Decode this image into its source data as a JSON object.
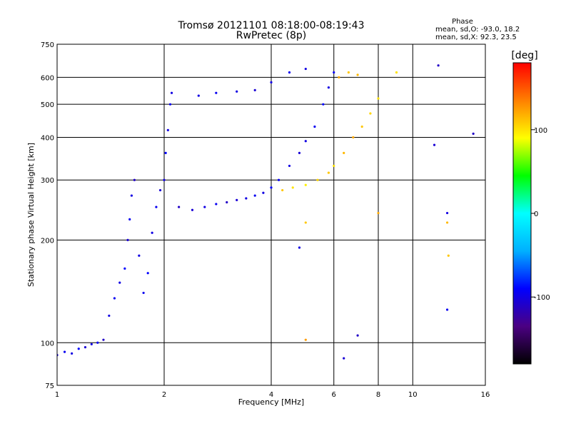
{
  "chart_data": {
    "type": "scatter",
    "title": "Tromsø 20121101 08:18:00-08:19:43",
    "subtitle": "RwPretec (8p)",
    "xlabel": "Frequency [MHz]",
    "ylabel": "Stationary phase Virtual Height [km]",
    "x_scale": "log",
    "y_scale": "log",
    "xlim": [
      1,
      16
    ],
    "ylim": [
      75,
      750
    ],
    "x_ticks": [
      1,
      2,
      4,
      6,
      8,
      10,
      16
    ],
    "y_ticks": [
      75,
      100,
      200,
      300,
      400,
      500,
      600,
      750
    ],
    "grid": true,
    "phase_stats": {
      "title": "Phase",
      "line_o": "mean, sd,O:  -93.0, 18.2",
      "line_x": "mean, sd,X:  92.3, 23.5"
    },
    "colorbar": {
      "label": "[deg]",
      "range": [
        -180,
        180
      ],
      "ticks": [
        100,
        0,
        -100
      ],
      "colors": [
        "#000000",
        "#4b0082",
        "#0000ff",
        "#00b0ff",
        "#00ffff",
        "#00ff00",
        "#ffff00",
        "#ff8000",
        "#ff0000"
      ]
    },
    "series": [
      {
        "values_description": "",
        "colormap_by": "phase",
        "points": [
          [
            1.0,
            92,
            -100
          ],
          [
            1.05,
            94,
            -95
          ],
          [
            1.1,
            93,
            -100
          ],
          [
            1.15,
            96,
            -90
          ],
          [
            1.2,
            97,
            -105
          ],
          [
            1.25,
            99,
            -100
          ],
          [
            1.3,
            100,
            -95
          ],
          [
            1.35,
            102,
            -110
          ],
          [
            1.4,
            120,
            -100
          ],
          [
            1.45,
            135,
            -95
          ],
          [
            1.5,
            150,
            -100
          ],
          [
            1.55,
            165,
            -90
          ],
          [
            1.58,
            200,
            -105
          ],
          [
            1.6,
            230,
            -95
          ],
          [
            1.62,
            270,
            -100
          ],
          [
            1.65,
            300,
            -110
          ],
          [
            1.7,
            180,
            -100
          ],
          [
            1.75,
            140,
            -95
          ],
          [
            1.8,
            160,
            -90
          ],
          [
            1.85,
            210,
            -100
          ],
          [
            1.9,
            250,
            -95
          ],
          [
            1.95,
            280,
            -105
          ],
          [
            2.0,
            300,
            -100
          ],
          [
            2.02,
            360,
            -90
          ],
          [
            2.05,
            420,
            -100
          ],
          [
            2.08,
            500,
            -95
          ],
          [
            2.1,
            540,
            -100
          ],
          [
            2.2,
            250,
            -110
          ],
          [
            2.4,
            245,
            -105
          ],
          [
            2.6,
            250,
            -100
          ],
          [
            2.8,
            255,
            -95
          ],
          [
            3.0,
            258,
            -110
          ],
          [
            3.2,
            262,
            -105
          ],
          [
            3.4,
            265,
            -100
          ],
          [
            3.6,
            270,
            -95
          ],
          [
            3.8,
            275,
            -100
          ],
          [
            4.0,
            285,
            -90
          ],
          [
            4.2,
            300,
            -95
          ],
          [
            4.5,
            330,
            -100
          ],
          [
            4.8,
            360,
            -105
          ],
          [
            5.0,
            390,
            -100
          ],
          [
            5.3,
            430,
            -95
          ],
          [
            5.6,
            500,
            -90
          ],
          [
            5.8,
            560,
            -100
          ],
          [
            6.0,
            620,
            -95
          ],
          [
            2.5,
            530,
            -100
          ],
          [
            2.8,
            540,
            -95
          ],
          [
            3.2,
            545,
            -100
          ],
          [
            3.6,
            550,
            -105
          ],
          [
            4.0,
            580,
            -100
          ],
          [
            4.5,
            620,
            -95
          ],
          [
            5.0,
            635,
            -100
          ],
          [
            4.3,
            280,
            110
          ],
          [
            4.6,
            285,
            100
          ],
          [
            5.0,
            290,
            95
          ],
          [
            5.4,
            300,
            105
          ],
          [
            5.8,
            315,
            110
          ],
          [
            6.0,
            330,
            100
          ],
          [
            6.4,
            360,
            115
          ],
          [
            6.8,
            400,
            120
          ],
          [
            7.2,
            430,
            110
          ],
          [
            7.6,
            470,
            105
          ],
          [
            8.0,
            520,
            100
          ],
          [
            6.2,
            600,
            120
          ],
          [
            6.6,
            620,
            110
          ],
          [
            7.0,
            610,
            115
          ],
          [
            9.0,
            620,
            100
          ],
          [
            11.8,
            650,
            -110
          ],
          [
            11.5,
            380,
            -105
          ],
          [
            12.5,
            240,
            -100
          ],
          [
            12.5,
            125,
            -95
          ],
          [
            12.6,
            180,
            110
          ],
          [
            12.5,
            225,
            115
          ],
          [
            14.8,
            410,
            -110
          ],
          [
            5.0,
            102,
            125
          ],
          [
            5.0,
            225,
            110
          ],
          [
            4.8,
            190,
            -100
          ],
          [
            7.0,
            105,
            -110
          ],
          [
            6.4,
            90,
            -105
          ],
          [
            8.0,
            240,
            120
          ]
        ]
      }
    ]
  }
}
